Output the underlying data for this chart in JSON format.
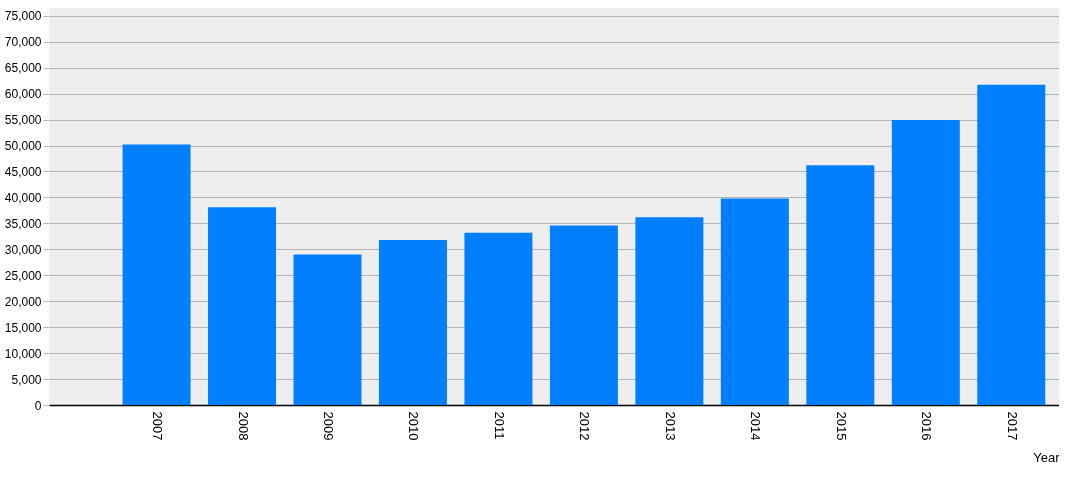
{
  "chart_data": {
    "type": "bar",
    "xlabel": "Year",
    "categories": [
      "2007",
      "2008",
      "2009",
      "2010",
      "2011",
      "2012",
      "2013",
      "2014",
      "2015",
      "2016",
      "2017"
    ],
    "values": [
      50200,
      38100,
      29000,
      31800,
      33200,
      34600,
      36200,
      39800,
      46200,
      54900,
      61700
    ],
    "color": "#0080ff",
    "ylim": [
      0,
      76500
    ],
    "yticks": [
      0,
      {
        "value": 5000,
        "label": "5,000"
      },
      {
        "value": 10000,
        "label": "10,000"
      },
      {
        "value": 15000,
        "label": "15,000"
      },
      {
        "value": 20000,
        "label": "20,000"
      },
      {
        "value": 25000,
        "label": "25,000"
      },
      {
        "value": 30000,
        "label": "30,000"
      },
      {
        "value": 35000,
        "label": "35,000"
      },
      {
        "value": 40000,
        "label": "40,000"
      },
      {
        "value": 45000,
        "label": "45,000"
      },
      {
        "value": 50000,
        "label": "50,000"
      },
      {
        "value": 55000,
        "label": "55,000"
      },
      {
        "value": 60000,
        "label": "60,000"
      },
      {
        "value": 65000,
        "label": "65,000"
      },
      {
        "value": 70000,
        "label": "70,000"
      },
      {
        "value": 75000,
        "label": "75,000"
      }
    ],
    "grid": "y"
  }
}
